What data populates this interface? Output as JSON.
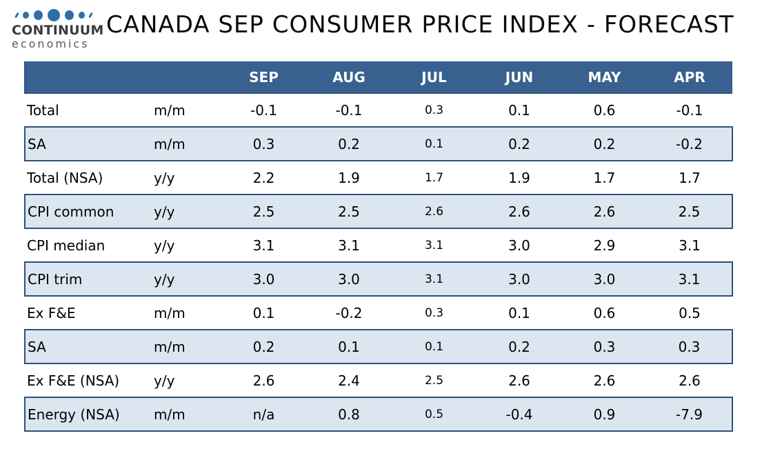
{
  "logo": {
    "name": "CONTINUUM",
    "subname": "economics",
    "dots_color": "#2F6DA6"
  },
  "title": "CANADA SEP CONSUMER PRICE INDEX - FORECAST",
  "colors": {
    "header_bg": "#38618F",
    "header_text": "#FFFFFF",
    "alt_row_bg": "#DCE6F1",
    "grid_border": "#2D517D",
    "logo_blue": "#2F6DA6",
    "title_text": "#0A0A0A"
  },
  "chart_data": {
    "type": "table",
    "title": "CANADA SEP CONSUMER PRICE INDEX - FORECAST",
    "columns": [
      "",
      "",
      "SEP",
      "AUG",
      "JUL",
      "JUN",
      "MAY",
      "APR"
    ],
    "rows": [
      {
        "label": "Total",
        "unit": "m/m",
        "values": [
          "-0.1",
          "-0.1",
          "0.3",
          "0.1",
          "0.6",
          "-0.1"
        ]
      },
      {
        "label": "SA",
        "unit": "m/m",
        "values": [
          "0.3",
          "0.2",
          "0.1",
          "0.2",
          "0.2",
          "-0.2"
        ]
      },
      {
        "label": "Total (NSA)",
        "unit": "y/y",
        "values": [
          "2.2",
          "1.9",
          "1.7",
          "1.9",
          "1.7",
          "1.7"
        ]
      },
      {
        "label": "CPI common",
        "unit": "y/y",
        "values": [
          "2.5",
          "2.5",
          "2.6",
          "2.6",
          "2.6",
          "2.5"
        ]
      },
      {
        "label": "CPI median",
        "unit": "y/y",
        "values": [
          "3.1",
          "3.1",
          "3.1",
          "3.0",
          "2.9",
          "3.1"
        ]
      },
      {
        "label": "CPI trim",
        "unit": "y/y",
        "values": [
          "3.0",
          "3.0",
          "3.1",
          "3.0",
          "3.0",
          "3.1"
        ]
      },
      {
        "label": "Ex F&E",
        "unit": "m/m",
        "values": [
          "0.1",
          "-0.2",
          "0.3",
          "0.1",
          "0.6",
          "0.5"
        ]
      },
      {
        "label": "SA",
        "unit": "m/m",
        "values": [
          "0.2",
          "0.1",
          "0.1",
          "0.2",
          "0.3",
          "0.3"
        ]
      },
      {
        "label": "Ex F&E (NSA)",
        "unit": "y/y",
        "values": [
          "2.6",
          "2.4",
          "2.5",
          "2.6",
          "2.6",
          "2.6"
        ]
      },
      {
        "label": "Energy (NSA)",
        "unit": "m/m",
        "values": [
          "n/a",
          "0.8",
          "0.5",
          "-0.4",
          "0.9",
          "-7.9"
        ]
      }
    ]
  }
}
